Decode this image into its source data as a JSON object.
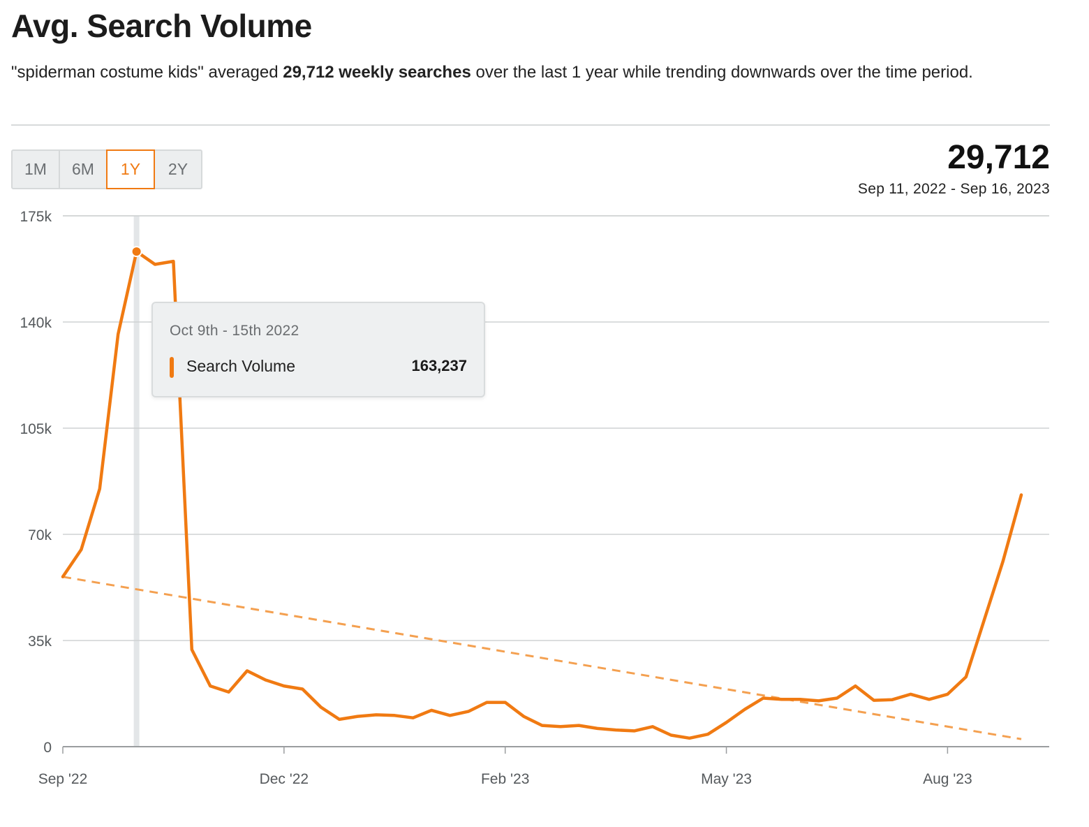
{
  "header": {
    "title": "Avg. Search Volume",
    "summary_pre": "\"spiderman costume kids\" averaged ",
    "summary_bold": "29,712 weekly searches",
    "summary_post": " over the last 1 year while trending downwards over the time period."
  },
  "range_selector": {
    "options": [
      "1M",
      "6M",
      "1Y",
      "2Y"
    ],
    "selected": "1Y"
  },
  "stats": {
    "average": "29,712",
    "date_range": "Sep 11, 2022 - Sep 16, 2023"
  },
  "tooltip": {
    "date": "Oct 9th - 15th 2022",
    "series_name": "Search Volume",
    "value": "163,237"
  },
  "colors": {
    "series": "#f07a12",
    "trend": "#f4a050",
    "grid": "#cfd2d3",
    "hover_band": "#e3e6e8"
  },
  "chart_data": {
    "type": "line",
    "title": "Avg. Search Volume",
    "xlabel": "",
    "ylabel": "",
    "ylim": [
      0,
      175000
    ],
    "y_ticks": [
      0,
      35000,
      70000,
      105000,
      140000,
      175000
    ],
    "y_tick_labels": [
      "0",
      "35k",
      "70k",
      "105k",
      "140k",
      "175k"
    ],
    "x_tick_labels": [
      {
        "label": "Sep '22",
        "week_index": 0
      },
      {
        "label": "Dec '22",
        "week_index": 12
      },
      {
        "label": "Feb '23",
        "week_index": 24
      },
      {
        "label": "May '23",
        "week_index": 36
      },
      {
        "label": "Aug '23",
        "week_index": 48
      }
    ],
    "grid": true,
    "highlight_index": 4,
    "series": [
      {
        "name": "Search Volume",
        "values": [
          56000,
          65000,
          85000,
          136000,
          163237,
          159000,
          160000,
          32000,
          20000,
          18000,
          25000,
          22000,
          20000,
          19000,
          13000,
          9000,
          10000,
          10500,
          10300,
          9500,
          12000,
          10300,
          11600,
          14600,
          14600,
          10000,
          7000,
          6600,
          7000,
          6000,
          5500,
          5200,
          6600,
          3800,
          2800,
          4100,
          8000,
          12300,
          16000,
          15600,
          15600,
          15100,
          16000,
          20000,
          15300,
          15500,
          17300,
          15600,
          17300,
          23000,
          42000,
          61000,
          83000
        ]
      },
      {
        "name": "Trend",
        "values": [
          56000,
          2500
        ],
        "style": "dashed"
      }
    ]
  }
}
